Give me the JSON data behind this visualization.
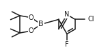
{
  "background_color": "#ffffff",
  "figsize": [
    1.39,
    0.73
  ],
  "dpi": 100,
  "bond_color": "#1a1a1a",
  "bond_width": 1.1,
  "text_color": "#1a1a1a",
  "atom_labels": {
    "B": {
      "text": "B",
      "fs": 8
    },
    "O1": {
      "text": "O",
      "fs": 7
    },
    "O2": {
      "text": "O",
      "fs": 7
    },
    "N": {
      "text": "N",
      "fs": 7
    },
    "Cl": {
      "text": "Cl",
      "fs": 7
    },
    "F": {
      "text": "F",
      "fs": 7
    }
  }
}
